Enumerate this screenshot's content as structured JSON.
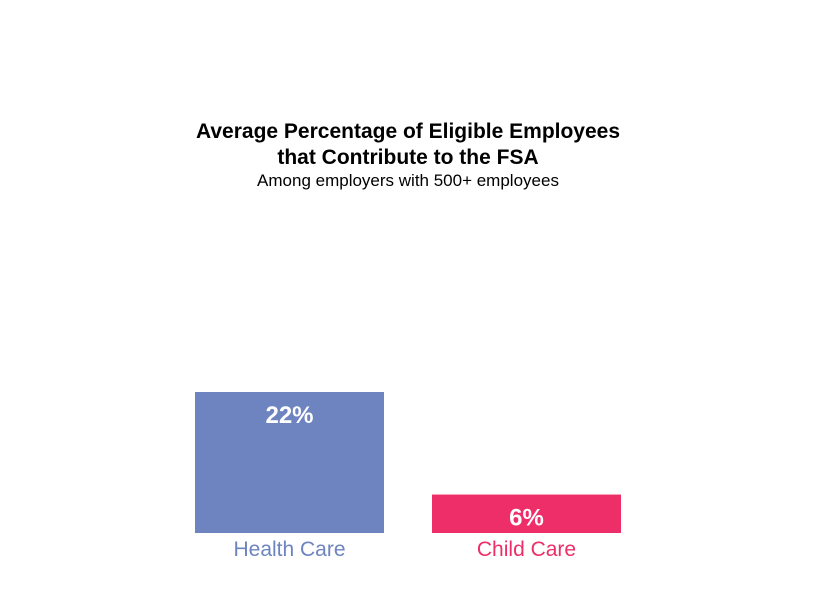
{
  "chart_data": {
    "type": "bar",
    "title_lines": [
      "Average Percentage of Eligible Employees",
      "that Contribute to the FSA"
    ],
    "subtitle": "Among employers with 500+ employees",
    "categories": [
      "Health Care",
      "Child Care"
    ],
    "values": [
      22,
      6
    ],
    "data_labels": [
      "22%",
      "6%"
    ],
    "colors": [
      "#6e84c0",
      "#ee2e68"
    ],
    "ylim": [
      0,
      22
    ],
    "grid": false,
    "legend": "none"
  }
}
